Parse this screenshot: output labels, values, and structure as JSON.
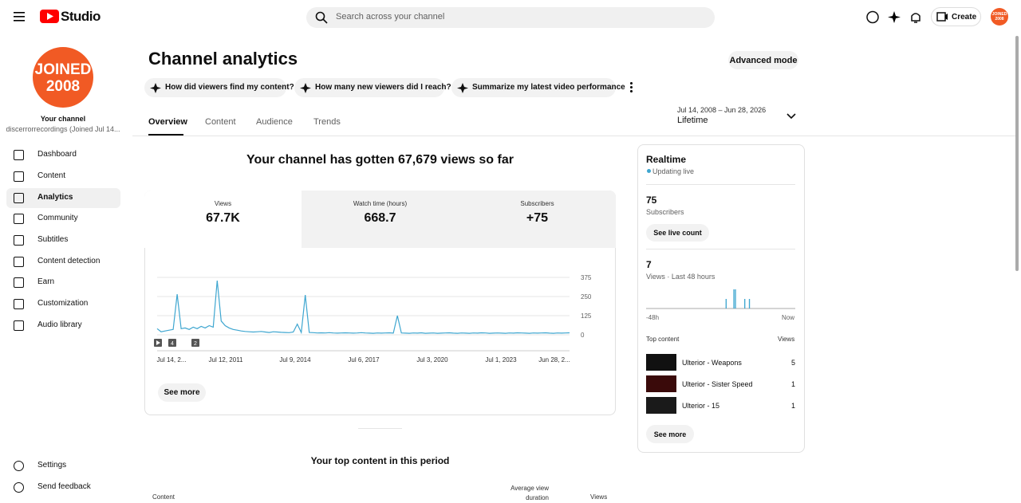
{
  "header": {
    "logo": "Studio",
    "search_placeholder": "Search across your channel",
    "create": "Create",
    "avatar": "JOINED 2008"
  },
  "sidebar": {
    "avatar": [
      "JOINED",
      "2008"
    ],
    "channel_label": "Your channel",
    "channel_name": "discerrorrecordings (Joined Jul 14...",
    "nav": [
      "Dashboard",
      "Content",
      "Analytics",
      "Community",
      "Subtitles",
      "Content detection",
      "Earn",
      "Customization",
      "Audio library"
    ],
    "footer": [
      "Settings",
      "Send feedback"
    ]
  },
  "page": {
    "title": "Channel analytics",
    "advanced": "Advanced mode",
    "prompts": [
      "How did viewers find my content?",
      "How many new viewers did I reach?",
      "Summarize my latest video performance"
    ],
    "tabs": [
      "Overview",
      "Content",
      "Audience",
      "Trends"
    ],
    "date_range": "Jul 14, 2008 – Jun 28, 2026",
    "period": "Lifetime"
  },
  "summary": "Your channel has gotten 67,679 views so far",
  "metrics": [
    {
      "label": "Views",
      "value": "67.7K"
    },
    {
      "label": "Watch time (hours)",
      "value": "668.7"
    },
    {
      "label": "Subscribers",
      "value": "+75"
    }
  ],
  "chart_data": {
    "type": "line",
    "color": "#3ea6d0",
    "ylim": [
      0,
      375
    ],
    "yticks": [
      0,
      125,
      250,
      375
    ],
    "grid": true,
    "xtick_labels": [
      "Jul 14, 2...",
      "Jul 12, 2011",
      "Jul 9, 2014",
      "Jul 6, 2017",
      "Jul 3, 2020",
      "Jul 1, 2023",
      "Jun 28, 2..."
    ],
    "annotations": [
      "4",
      "2"
    ],
    "values": [
      40,
      20,
      25,
      30,
      35,
      265,
      40,
      45,
      35,
      50,
      40,
      55,
      45,
      60,
      50,
      354,
      90,
      60,
      45,
      35,
      30,
      25,
      22,
      20,
      18,
      20,
      22,
      18,
      15,
      20,
      18,
      16,
      15,
      14,
      18,
      70,
      15,
      260,
      15,
      14,
      12,
      13,
      12,
      14,
      12,
      11,
      12,
      13,
      12,
      11,
      12,
      14,
      12,
      11,
      10,
      12,
      11,
      12,
      13,
      11,
      125,
      12,
      11,
      10,
      12,
      11,
      13,
      10,
      11,
      12,
      10,
      11,
      12,
      13,
      11,
      10,
      12,
      11,
      10,
      12,
      11,
      13,
      12,
      10,
      11,
      12,
      11,
      10,
      12,
      11,
      13,
      12,
      11,
      10,
      12,
      11,
      12,
      13,
      11,
      10,
      12,
      11,
      12,
      13
    ]
  },
  "see_more": "See more",
  "top_content": {
    "title": "Your top content in this period",
    "columns": [
      "Content",
      "Average view duration",
      "Views"
    ]
  },
  "realtime": {
    "title": "Realtime",
    "status": "Updating live",
    "subscribers": "75",
    "subscribers_label": "Subscribers",
    "live_count": "See live count",
    "views": "7",
    "views_label": "Views · Last 48 hours",
    "chart": {
      "type": "bar",
      "color": "#3ea6d0",
      "ylim": [
        0,
        2
      ],
      "values": [
        0,
        0,
        0,
        0,
        0,
        0,
        0,
        0,
        0,
        0,
        0,
        0,
        0,
        0,
        0,
        0,
        0,
        0,
        0,
        0,
        0,
        0,
        0,
        0,
        0,
        0,
        0,
        0,
        0,
        0,
        0,
        0,
        0,
        0,
        0,
        0,
        0,
        0,
        0,
        0,
        0,
        0,
        0,
        0,
        0,
        0,
        0,
        0,
        0,
        0,
        0,
        1,
        0,
        0,
        0,
        0,
        2,
        2,
        0,
        0,
        0,
        0,
        0,
        1,
        0,
        0,
        1,
        0,
        0,
        0,
        0,
        0,
        0,
        0,
        0,
        0,
        0,
        0,
        0,
        0,
        0,
        0,
        0,
        0,
        0,
        0,
        0,
        0,
        0,
        0,
        0,
        0,
        0,
        0,
        0,
        0
      ],
      "start": "-48h",
      "end": "Now"
    },
    "top_label": "Top content",
    "top_views_label": "Views",
    "top": [
      {
        "title": "Ulterior - Weapons",
        "views": 5
      },
      {
        "title": "Ulterior - Sister Speed",
        "views": 1
      },
      {
        "title": "Ulterior - 15",
        "views": 1
      }
    ],
    "see_more": "See more"
  }
}
